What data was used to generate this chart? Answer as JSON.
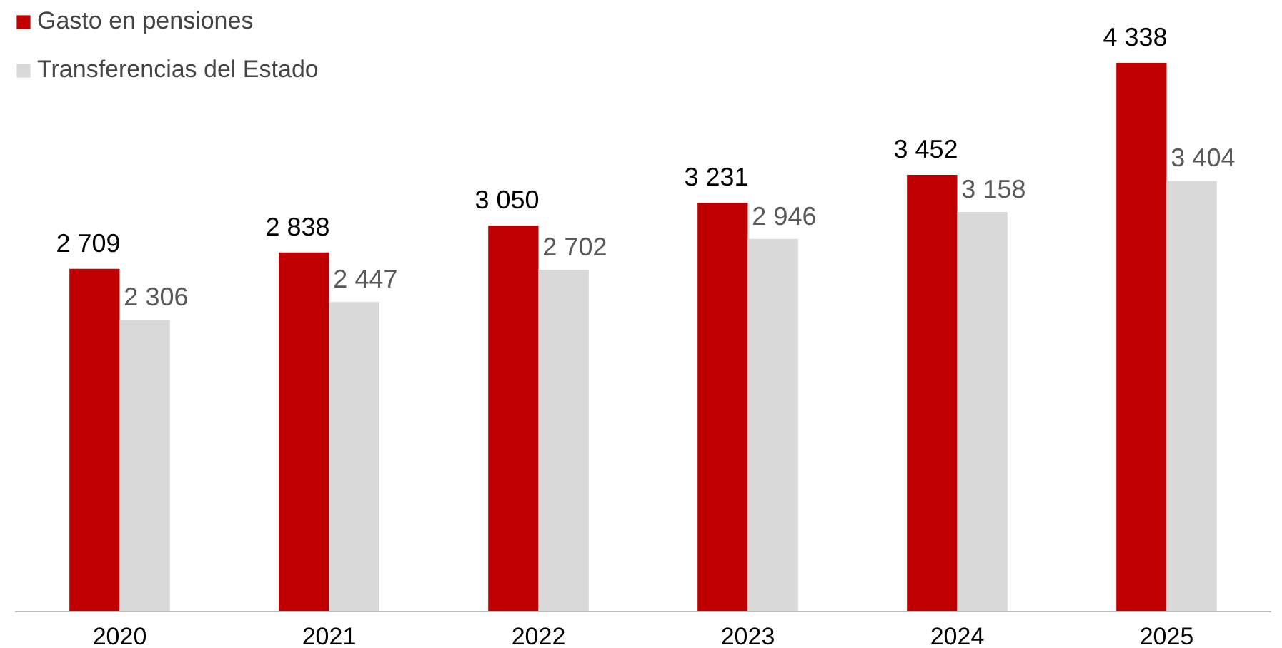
{
  "chart_data": {
    "type": "bar",
    "categories": [
      "2020",
      "2021",
      "2022",
      "2023",
      "2024",
      "2025"
    ],
    "series": [
      {
        "name": "Gasto en pensiones",
        "color": "#c00000",
        "values": [
          2709,
          2838,
          3050,
          3231,
          3452,
          4338
        ],
        "value_labels": [
          "2 709",
          "2 838",
          "3 050",
          "3 231",
          "3 452",
          "4 338"
        ]
      },
      {
        "name": "Transferencias del Estado",
        "color": "#d9d9d9",
        "values": [
          2306,
          2447,
          2702,
          2946,
          3158,
          3404
        ],
        "value_labels": [
          "2 306",
          "2 447",
          "2 702",
          "2 946",
          "3 158",
          "3 404"
        ]
      }
    ],
    "legend": "top left",
    "grid": false
  }
}
